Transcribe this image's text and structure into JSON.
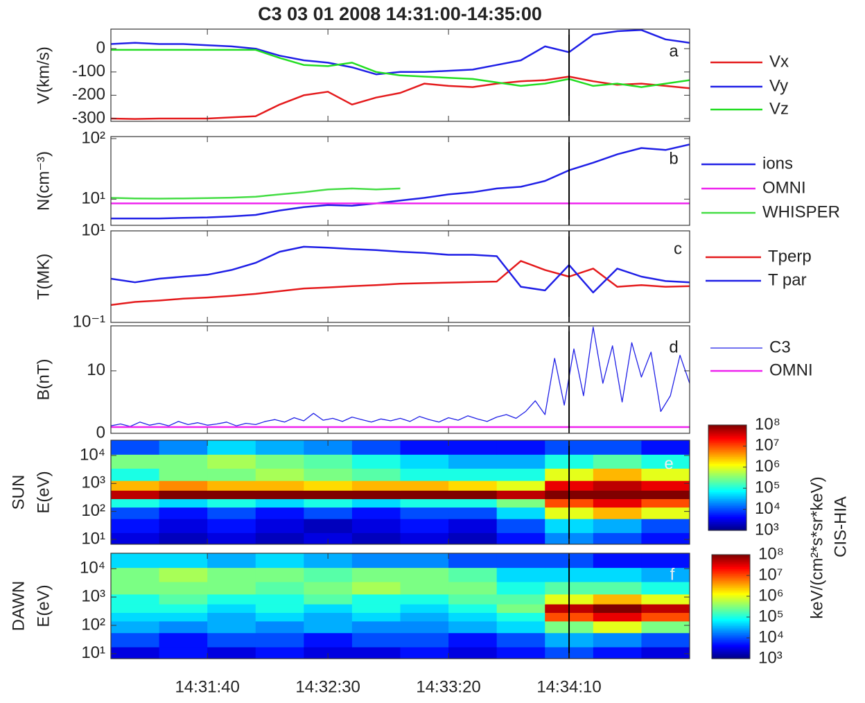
{
  "title": "C3 03 01 2008 14:31:00-14:35:00",
  "chart_data": [
    {
      "type": "line",
      "panel_label": "a",
      "ylabel": "V(km/s)",
      "xlim": [
        0,
        240
      ],
      "ylim": [
        -312,
        84
      ],
      "yticks": [
        0,
        -100,
        -200,
        -300
      ],
      "vline": 190,
      "x": [
        0,
        10,
        20,
        30,
        40,
        50,
        60,
        70,
        80,
        90,
        100,
        110,
        120,
        130,
        140,
        150,
        160,
        170,
        180,
        190,
        200,
        210,
        220,
        230,
        240
      ],
      "series": [
        {
          "name": "Vx",
          "color": "#e41a1c",
          "values": [
            -300,
            -302,
            -300,
            -300,
            -300,
            -295,
            -290,
            -240,
            -200,
            -185,
            -240,
            -210,
            -190,
            -150,
            -160,
            -165,
            -150,
            -140,
            -135,
            -120,
            -140,
            -155,
            -150,
            -160,
            -170
          ]
        },
        {
          "name": "Vy",
          "color": "#1f1fe6",
          "values": [
            20,
            25,
            20,
            20,
            15,
            10,
            0,
            -30,
            -50,
            -60,
            -80,
            -110,
            -100,
            -100,
            -95,
            -90,
            -70,
            -50,
            10,
            -15,
            60,
            75,
            80,
            40,
            25
          ]
        },
        {
          "name": "Vz",
          "color": "#22dd22",
          "values": [
            -5,
            -5,
            -5,
            -5,
            -5,
            -5,
            -5,
            -40,
            -70,
            -75,
            -60,
            -100,
            -115,
            -120,
            -125,
            -130,
            -145,
            -160,
            -150,
            -130,
            -160,
            -150,
            -165,
            -150,
            -135
          ]
        }
      ]
    },
    {
      "type": "line",
      "panel_label": "b",
      "ylabel": "N(cm⁻³)",
      "yscale": "log",
      "xlim": [
        0,
        240
      ],
      "ylim": [
        3.7,
        108
      ],
      "yticks": [
        {
          "value": 100,
          "label": "10²"
        },
        {
          "value": 10,
          "label": "10¹"
        }
      ],
      "vline": 190,
      "x": [
        0,
        10,
        20,
        30,
        40,
        50,
        60,
        70,
        80,
        90,
        100,
        110,
        120,
        130,
        140,
        150,
        160,
        170,
        180,
        190,
        200,
        210,
        220,
        230,
        240
      ],
      "series": [
        {
          "name": "ions",
          "color": "#1f1fe6",
          "values": [
            4.8,
            4.8,
            4.8,
            4.9,
            5.0,
            5.2,
            5.5,
            6.5,
            7.4,
            8.0,
            7.8,
            8.5,
            9.5,
            10.5,
            12,
            13,
            15,
            16,
            20,
            30,
            40,
            55,
            70,
            65,
            80
          ]
        },
        {
          "name": "OMNI",
          "color": "#ee22ee",
          "values": [
            8.5,
            8.5,
            8.5,
            8.5,
            8.5,
            8.5,
            8.5,
            8.5,
            8.5,
            8.5,
            8.5,
            8.5,
            8.5,
            8.5,
            8.5,
            8.5,
            8.5,
            8.5,
            8.5,
            8.5,
            8.5,
            8.5,
            8.5,
            8.5,
            8.5
          ]
        },
        {
          "name": "WHISPER",
          "color": "#44dd44",
          "values": [
            10.5,
            10.3,
            10.2,
            10.3,
            10.4,
            10.6,
            11,
            12,
            13,
            14.5,
            15,
            14.5,
            15,
            null,
            null,
            null,
            null,
            null,
            null,
            null,
            null,
            null,
            null,
            null,
            null
          ]
        }
      ]
    },
    {
      "type": "line",
      "panel_label": "c",
      "ylabel": "T(MK)",
      "yscale": "log",
      "xlim": [
        0,
        240
      ],
      "ylim": [
        0.1,
        10
      ],
      "yticks": [
        {
          "value": 10,
          "label": "10¹"
        },
        {
          "value": 0.1,
          "label": "10⁻¹"
        }
      ],
      "vline": 190,
      "x": [
        0,
        10,
        20,
        30,
        40,
        50,
        60,
        70,
        80,
        90,
        100,
        110,
        120,
        130,
        140,
        150,
        160,
        170,
        180,
        190,
        200,
        210,
        220,
        230,
        240
      ],
      "series": [
        {
          "name": "Tperp",
          "color": "#e41a1c",
          "values": [
            0.24,
            0.28,
            0.3,
            0.33,
            0.35,
            0.38,
            0.42,
            0.48,
            0.55,
            0.58,
            0.62,
            0.65,
            0.7,
            0.72,
            0.74,
            0.76,
            0.78,
            2.2,
            1.4,
            1.0,
            1.5,
            0.6,
            0.65,
            0.6,
            0.62
          ]
        },
        {
          "name": "T par",
          "color": "#1f1fe6",
          "values": [
            0.9,
            0.75,
            0.9,
            1.0,
            1.1,
            1.4,
            2.0,
            3.5,
            4.5,
            4.3,
            4.0,
            3.8,
            3.5,
            3.3,
            3.0,
            3.0,
            2.8,
            0.6,
            0.5,
            1.8,
            0.45,
            1.5,
            1.0,
            0.8,
            0.75
          ]
        }
      ]
    },
    {
      "type": "line",
      "panel_label": "d",
      "ylabel": "B(nT)",
      "xlim": [
        0,
        240
      ],
      "ylim": [
        0,
        17.2
      ],
      "yticks": [
        0,
        10
      ],
      "vline": 190,
      "thin": true,
      "x": [
        0,
        4,
        8,
        12,
        16,
        20,
        24,
        28,
        32,
        36,
        40,
        44,
        48,
        52,
        56,
        60,
        64,
        68,
        72,
        76,
        80,
        84,
        88,
        92,
        96,
        100,
        104,
        108,
        112,
        116,
        120,
        124,
        128,
        132,
        136,
        140,
        144,
        148,
        152,
        156,
        160,
        164,
        168,
        172,
        176,
        180,
        184,
        188,
        192,
        196,
        200,
        204,
        208,
        212,
        216,
        220,
        224,
        228,
        232,
        236,
        240
      ],
      "series": [
        {
          "name": "C3",
          "color": "#1f1fe6",
          "values": [
            1.2,
            1.5,
            1.1,
            1.8,
            1.3,
            1.6,
            1.2,
            1.9,
            1.4,
            1.7,
            1.3,
            1.5,
            1.8,
            1.2,
            1.6,
            1.4,
            1.9,
            2.2,
            1.8,
            2.5,
            2.0,
            3.2,
            2.1,
            2.4,
            1.9,
            2.6,
            2.2,
            1.8,
            2.3,
            2.0,
            2.4,
            1.9,
            2.7,
            2.2,
            1.8,
            2.5,
            2.1,
            2.8,
            2.3,
            1.9,
            2.6,
            3.0,
            2.4,
            3.5,
            5.2,
            3.0,
            12.0,
            4.5,
            13.5,
            6.0,
            17.0,
            8.0,
            14.0,
            5.0,
            14.5,
            9.0,
            13.0,
            3.5,
            6.0,
            12.5,
            8.0
          ]
        },
        {
          "name": "OMNI",
          "color": "#ee22ee",
          "values": [
            1,
            1,
            1,
            1,
            1,
            1,
            1,
            1,
            1,
            1,
            1,
            1,
            1,
            1,
            1,
            1,
            1,
            1,
            1,
            1,
            1,
            1,
            1,
            1,
            1,
            1,
            1,
            1,
            1,
            1,
            1,
            1,
            1,
            1,
            1,
            1,
            1,
            1,
            1,
            1,
            1,
            1,
            1,
            1,
            1,
            1,
            1,
            1,
            1,
            1,
            1,
            1,
            1,
            1,
            1,
            1,
            1,
            1,
            1,
            1,
            1
          ]
        }
      ]
    },
    {
      "type": "heatmap",
      "panel_label": "e",
      "ylabel": [
        "SUN",
        "E(eV)"
      ],
      "yscale": "log",
      "xlim": [
        0,
        240
      ],
      "ylim": [
        6.7,
        35000
      ],
      "vline": 190,
      "yticks": [
        {
          "value": 10000,
          "label": "10⁴"
        },
        {
          "value": 1000,
          "label": "10³"
        },
        {
          "value": 100,
          "label": "10²"
        },
        {
          "value": 10,
          "label": "10¹"
        }
      ],
      "zlim": [
        1000,
        100000000
      ],
      "zticks": [
        {
          "value": 100000000,
          "label": "10⁸"
        },
        {
          "value": 10000000,
          "label": "10⁷"
        },
        {
          "value": 1000000,
          "label": "10⁶"
        },
        {
          "value": 100000,
          "label": "10⁵"
        },
        {
          "value": 10000,
          "label": "10⁴"
        },
        {
          "value": 1000,
          "label": "10³"
        }
      ],
      "x": [
        10,
        30,
        50,
        70,
        90,
        110,
        130,
        150,
        170,
        190,
        210,
        230
      ],
      "y": [
        10,
        30,
        100,
        200,
        400,
        800,
        2000,
        6000,
        20000
      ],
      "z": [
        [
          3000,
          2000,
          3000,
          2000,
          3000,
          2000,
          3000,
          2000,
          5000,
          20000,
          10000,
          5000
        ],
        [
          5000,
          3000,
          5000,
          3000,
          2000,
          3000,
          5000,
          3000,
          10000,
          50000,
          30000,
          10000
        ],
        [
          10000,
          5000,
          10000,
          5000,
          10000,
          5000,
          10000,
          10000,
          50000,
          1000000,
          3000000,
          1000000
        ],
        [
          100000,
          50000,
          100000,
          50000,
          100000,
          50000,
          100000,
          100000,
          300000,
          10000000,
          30000000,
          10000000
        ],
        [
          50000000,
          100000000,
          100000000,
          100000000,
          100000000,
          100000000,
          100000000,
          100000000,
          50000000,
          100000000,
          100000000,
          100000000
        ],
        [
          3000000,
          5000000,
          3000000,
          3000000,
          2000000,
          3000000,
          3000000,
          2000000,
          1000000,
          30000000,
          50000000,
          30000000
        ],
        [
          100000,
          300000,
          300000,
          500000,
          300000,
          200000,
          100000,
          100000,
          100000,
          1000000,
          3000000,
          1000000
        ],
        [
          300000,
          300000,
          500000,
          300000,
          200000,
          100000,
          50000,
          30000,
          30000,
          100000,
          200000,
          100000
        ],
        [
          10000,
          20000,
          50000,
          30000,
          20000,
          10000,
          5000,
          5000,
          5000,
          10000,
          10000,
          5000
        ]
      ]
    },
    {
      "type": "heatmap",
      "panel_label": "f",
      "ylabel": [
        "DAWN",
        "E(eV)"
      ],
      "yscale": "log",
      "xlim": [
        0,
        240
      ],
      "ylim": [
        6.7,
        35000
      ],
      "vline": 190,
      "yticks": [
        {
          "value": 10000,
          "label": "10⁴"
        },
        {
          "value": 1000,
          "label": "10³"
        },
        {
          "value": 100,
          "label": "10²"
        },
        {
          "value": 10,
          "label": "10¹"
        }
      ],
      "xticks": [
        {
          "value": 40,
          "label": "14:31:40"
        },
        {
          "value": 90,
          "label": "14:32:30"
        },
        {
          "value": 140,
          "label": "14:33:20"
        },
        {
          "value": 190,
          "label": "14:34:10"
        }
      ],
      "zlim": [
        1000,
        100000000
      ],
      "zticks": [
        {
          "value": 100000000,
          "label": "10⁸"
        },
        {
          "value": 10000000,
          "label": "10⁷"
        },
        {
          "value": 1000000,
          "label": "10⁶"
        },
        {
          "value": 100000,
          "label": "10⁵"
        },
        {
          "value": 10000,
          "label": "10⁴"
        },
        {
          "value": 1000,
          "label": "10³"
        }
      ],
      "zlabel": "keV/(cm²*s*sr*keV)",
      "ztitle": "CIS-HIA",
      "x": [
        10,
        30,
        50,
        70,
        90,
        110,
        130,
        150,
        170,
        190,
        210,
        230
      ],
      "y": [
        10,
        30,
        100,
        200,
        400,
        800,
        2000,
        6000,
        20000
      ],
      "z": [
        [
          3000,
          5000,
          3000,
          5000,
          3000,
          3000,
          5000,
          3000,
          5000,
          10000,
          5000,
          3000
        ],
        [
          10000,
          5000,
          10000,
          10000,
          5000,
          10000,
          10000,
          5000,
          10000,
          30000,
          20000,
          10000
        ],
        [
          30000,
          20000,
          30000,
          20000,
          30000,
          20000,
          20000,
          30000,
          50000,
          300000,
          1000000,
          300000
        ],
        [
          50000,
          50000,
          30000,
          50000,
          30000,
          50000,
          30000,
          50000,
          100000,
          10000000,
          30000000,
          10000000
        ],
        [
          100000,
          100000,
          50000,
          100000,
          50000,
          100000,
          50000,
          100000,
          300000,
          50000000,
          100000000,
          50000000
        ],
        [
          100000,
          200000,
          100000,
          100000,
          200000,
          100000,
          100000,
          200000,
          200000,
          1000000,
          3000000,
          1000000
        ],
        [
          300000,
          300000,
          300000,
          200000,
          300000,
          500000,
          300000,
          300000,
          100000,
          200000,
          200000,
          100000
        ],
        [
          300000,
          500000,
          300000,
          300000,
          200000,
          300000,
          300000,
          200000,
          50000,
          50000,
          50000,
          30000
        ],
        [
          50000,
          50000,
          30000,
          50000,
          30000,
          20000,
          20000,
          10000,
          10000,
          10000,
          5000,
          5000
        ]
      ]
    }
  ]
}
